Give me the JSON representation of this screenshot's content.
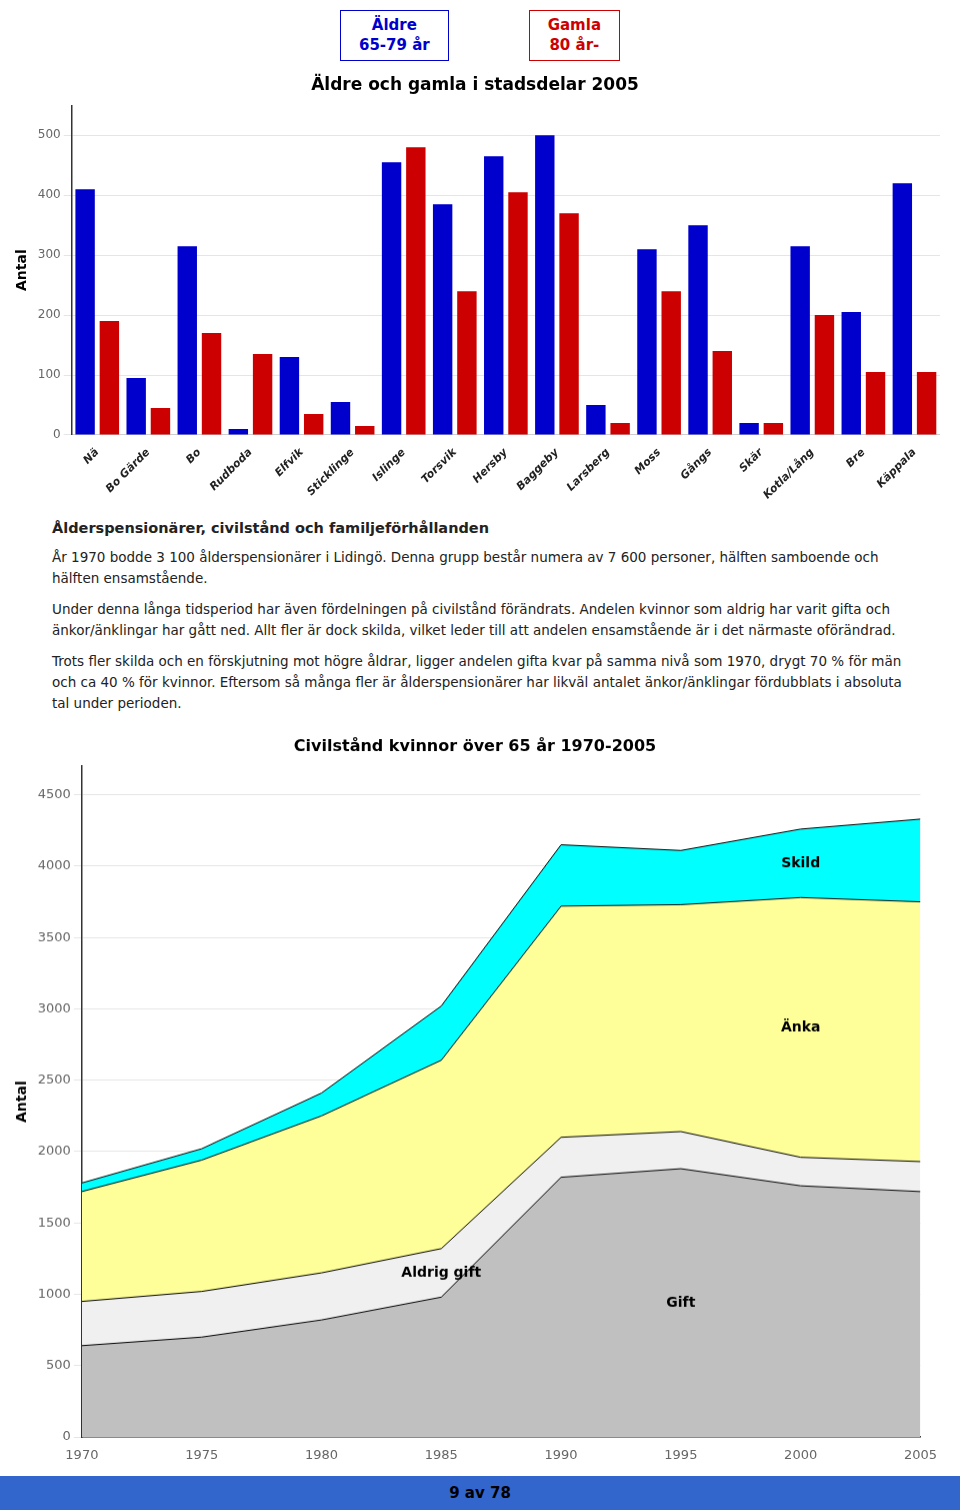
{
  "chart_data": [
    {
      "type": "bar",
      "title": "Äldre och gamla i stadsdelar 2005",
      "ylabel": "Antal",
      "categories": [
        "Nä",
        "Bo Gärde",
        "Bo",
        "Rudboda",
        "Elfvik",
        "Sticklinge",
        "Islinge",
        "Torsvik",
        "Hersby",
        "Baggeby",
        "Larsberg",
        "Moss",
        "Gångs",
        "Skär",
        "Kotla/Lång",
        "Bre",
        "Käppala"
      ],
      "series": [
        {
          "name": "Äldre\n65-79 år",
          "color": "#0000CC",
          "values": [
            410,
            95,
            315,
            10,
            130,
            55,
            455,
            385,
            465,
            500,
            50,
            310,
            350,
            20,
            315,
            205,
            420
          ]
        },
        {
          "name": "Gamla\n80 år-",
          "color": "#CC0000",
          "values": [
            190,
            45,
            170,
            135,
            35,
            15,
            480,
            240,
            405,
            370,
            20,
            240,
            140,
            20,
            200,
            105,
            105
          ]
        }
      ],
      "ylim": [
        0,
        550
      ],
      "yticks": [
        0,
        100,
        200,
        300,
        400,
        500
      ],
      "grid": true,
      "legend": "top"
    },
    {
      "type": "area",
      "title": "Civilstånd kvinnor över 65 år 1970-2005",
      "ylabel": "Antal",
      "stacked": true,
      "x": [
        1970,
        1975,
        1980,
        1985,
        1990,
        1995,
        2000,
        2005
      ],
      "series": [
        {
          "name": "Gift",
          "color": "#C0C0C0",
          "values": [
            640,
            700,
            820,
            980,
            1820,
            1880,
            1760,
            1720
          ]
        },
        {
          "name": "Aldrig gift",
          "color": "#F0F0F0",
          "values": [
            310,
            320,
            330,
            340,
            280,
            260,
            200,
            210
          ]
        },
        {
          "name": "Änka",
          "color": "#FFFF99",
          "values": [
            770,
            920,
            1100,
            1320,
            1620,
            1590,
            1820,
            1820
          ]
        },
        {
          "name": "Skild",
          "color": "#00FFFF",
          "values": [
            60,
            80,
            160,
            380,
            430,
            380,
            480,
            580
          ]
        }
      ],
      "xlim": [
        1970,
        2005
      ],
      "xticks": [
        1970,
        1975,
        1980,
        1985,
        1990,
        1995,
        2000,
        2005
      ],
      "ylim": [
        0,
        4700
      ],
      "yticks": [
        0,
        500,
        1000,
        1500,
        2000,
        2500,
        3000,
        3500,
        4000,
        4500
      ],
      "grid": true
    }
  ],
  "heading": "Ålderspensionärer, civilstånd och familjeförhållanden",
  "paragraphs": [
    "År 1970 bodde 3 100 ålderspensionärer i Lidingö. Denna grupp består numera av 7 600 personer, hälften samboende och hälften ensamstående.",
    "Under denna långa tidsperiod har även fördelningen på civilstånd förändrats. Andelen kvinnor som aldrig har varit gifta och änkor/änklingar har gått ned. Allt fler är dock skilda, vilket leder till att andelen ensamstående är i det närmaste oförändrad.",
    "Trots fler skilda och en förskjutning mot högre åldrar, ligger andelen gifta kvar på samma nivå som 1970, drygt 70 % för män och ca 40 % för kvinnor. Eftersom så många fler är ålderspensionärer har likväl antalet änkor/änklingar fördubblats i absoluta tal under perioden."
  ],
  "footer": "9 av 78"
}
